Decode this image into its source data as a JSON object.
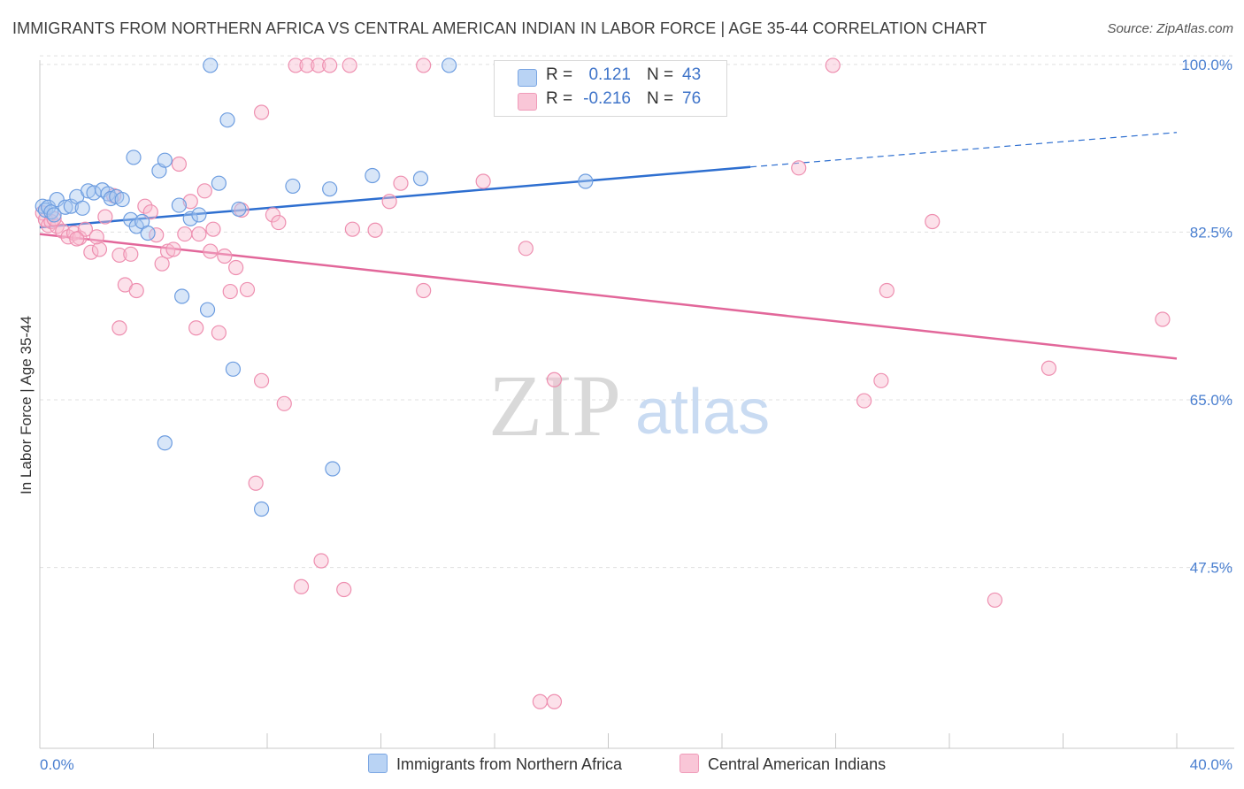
{
  "title": "IMMIGRANTS FROM NORTHERN AFRICA VS CENTRAL AMERICAN INDIAN IN LABOR FORCE | AGE 35-44 CORRELATION CHART",
  "source": "Source: ZipAtlas.com",
  "watermark": {
    "zip": "ZIP",
    "atlas": "atlas"
  },
  "legend": {
    "r_label": "R =",
    "n_label": "N =",
    "series": [
      {
        "r": "0.121",
        "n": "43"
      },
      {
        "r": "-0.216",
        "n": "76"
      }
    ]
  },
  "bottom_legend": {
    "s1": "Immigrants from Northern Africa",
    "s2": "Central American Indians"
  },
  "colors": {
    "blue_fill": "#a9c8f0",
    "blue_stroke": "#6d9de0",
    "blue_line": "#2e6fd0",
    "pink_fill": "#f8bdd0",
    "pink_stroke": "#ee8fb0",
    "pink_line": "#e2679a",
    "tick_text": "#4a7fd0",
    "grid": "#e0e0e0"
  },
  "chart_data": {
    "type": "scatter",
    "title": "IMMIGRANTS FROM NORTHERN AFRICA VS CENTRAL AMERICAN INDIAN IN LABOR FORCE | AGE 35-44 CORRELATION CHART",
    "xlabel": "",
    "ylabel": "In Labor Force | Age 35-44",
    "xlim": [
      0,
      40
    ],
    "ylim": [
      29,
      101
    ],
    "x_tick_labels": [
      "0.0%",
      "40.0%"
    ],
    "y_ticks": [
      47.5,
      65.0,
      82.5,
      100.0
    ],
    "y_tick_labels": [
      "47.5%",
      "65.0%",
      "82.5%",
      "100.0%"
    ],
    "grid": true,
    "series": [
      {
        "name": "Immigrants from Northern Africa",
        "trend": {
          "x0": 0,
          "y0": 83.0,
          "x1": 25,
          "y1": 89.3,
          "x_dash_end": 40,
          "y_dash_end": 92.9
        },
        "points": [
          [
            0.1,
            85.2
          ],
          [
            0.2,
            84.8
          ],
          [
            0.3,
            85.1
          ],
          [
            0.4,
            84.6
          ],
          [
            0.5,
            84.3
          ],
          [
            0.6,
            85.9
          ],
          [
            0.9,
            85.1
          ],
          [
            1.1,
            85.2
          ],
          [
            1.3,
            86.2
          ],
          [
            1.5,
            85.0
          ],
          [
            1.7,
            86.8
          ],
          [
            1.9,
            86.6
          ],
          [
            2.2,
            86.9
          ],
          [
            2.4,
            86.5
          ],
          [
            2.5,
            86.0
          ],
          [
            2.7,
            86.2
          ],
          [
            2.9,
            85.9
          ],
          [
            3.2,
            83.8
          ],
          [
            3.4,
            83.1
          ],
          [
            3.6,
            83.6
          ],
          [
            3.8,
            82.4
          ],
          [
            3.3,
            90.3
          ],
          [
            4.2,
            88.9
          ],
          [
            4.4,
            90.0
          ],
          [
            4.9,
            85.3
          ],
          [
            5.0,
            75.8
          ],
          [
            5.3,
            83.9
          ],
          [
            5.6,
            84.3
          ],
          [
            5.9,
            74.4
          ],
          [
            6.3,
            87.6
          ],
          [
            6.6,
            94.2
          ],
          [
            6.8,
            68.2
          ],
          [
            7.0,
            84.9
          ],
          [
            7.8,
            53.6
          ],
          [
            8.9,
            87.3
          ],
          [
            10.2,
            87.0
          ],
          [
            10.3,
            57.8
          ],
          [
            11.7,
            88.4
          ],
          [
            13.4,
            88.1
          ],
          [
            6.0,
            99.9
          ],
          [
            14.4,
            99.9
          ],
          [
            4.4,
            60.5
          ],
          [
            19.2,
            87.8
          ]
        ]
      },
      {
        "name": "Central American Indians",
        "trend": {
          "x0": 0,
          "y0": 82.3,
          "x1": 40,
          "y1": 69.3
        },
        "points": [
          [
            0.1,
            84.5
          ],
          [
            0.2,
            83.8
          ],
          [
            0.3,
            83.2
          ],
          [
            0.4,
            83.6
          ],
          [
            0.6,
            83.1
          ],
          [
            0.8,
            82.6
          ],
          [
            1.0,
            82.0
          ],
          [
            1.2,
            82.4
          ],
          [
            1.4,
            81.9
          ],
          [
            1.6,
            82.8
          ],
          [
            1.8,
            80.4
          ],
          [
            2.1,
            80.7
          ],
          [
            2.3,
            84.1
          ],
          [
            2.6,
            86.3
          ],
          [
            2.8,
            80.1
          ],
          [
            3.0,
            77.0
          ],
          [
            3.2,
            80.2
          ],
          [
            3.4,
            76.4
          ],
          [
            2.8,
            72.5
          ],
          [
            3.7,
            85.2
          ],
          [
            3.9,
            84.6
          ],
          [
            4.1,
            82.2
          ],
          [
            4.3,
            79.2
          ],
          [
            4.5,
            80.5
          ],
          [
            4.7,
            80.7
          ],
          [
            4.9,
            89.6
          ],
          [
            5.1,
            82.3
          ],
          [
            5.3,
            85.7
          ],
          [
            5.5,
            72.5
          ],
          [
            5.6,
            82.3
          ],
          [
            5.8,
            86.8
          ],
          [
            6.0,
            80.5
          ],
          [
            6.1,
            82.8
          ],
          [
            6.3,
            72.0
          ],
          [
            6.5,
            80.0
          ],
          [
            6.7,
            76.3
          ],
          [
            6.9,
            78.8
          ],
          [
            7.1,
            84.8
          ],
          [
            7.3,
            76.5
          ],
          [
            7.6,
            56.3
          ],
          [
            7.8,
            67.0
          ],
          [
            7.8,
            95.0
          ],
          [
            8.2,
            84.3
          ],
          [
            8.4,
            83.5
          ],
          [
            8.6,
            64.6
          ],
          [
            9.0,
            99.9
          ],
          [
            9.2,
            45.5
          ],
          [
            9.4,
            99.9
          ],
          [
            9.8,
            99.9
          ],
          [
            9.9,
            48.2
          ],
          [
            10.2,
            99.9
          ],
          [
            10.7,
            45.2
          ],
          [
            10.9,
            99.9
          ],
          [
            11.0,
            82.8
          ],
          [
            11.8,
            82.7
          ],
          [
            12.3,
            85.7
          ],
          [
            12.7,
            87.6
          ],
          [
            13.5,
            76.4
          ],
          [
            13.5,
            99.9
          ],
          [
            15.6,
            87.8
          ],
          [
            17.1,
            80.8
          ],
          [
            17.6,
            33.5
          ],
          [
            18.1,
            67.1
          ],
          [
            18.1,
            33.5
          ],
          [
            26.7,
            89.2
          ],
          [
            27.9,
            99.9
          ],
          [
            29.0,
            64.9
          ],
          [
            29.6,
            67.0
          ],
          [
            29.8,
            76.4
          ],
          [
            31.4,
            83.6
          ],
          [
            33.6,
            44.1
          ],
          [
            35.5,
            68.3
          ],
          [
            39.5,
            73.4
          ],
          [
            2.0,
            82.0
          ],
          [
            1.3,
            81.8
          ],
          [
            0.5,
            83.9
          ]
        ]
      }
    ]
  }
}
